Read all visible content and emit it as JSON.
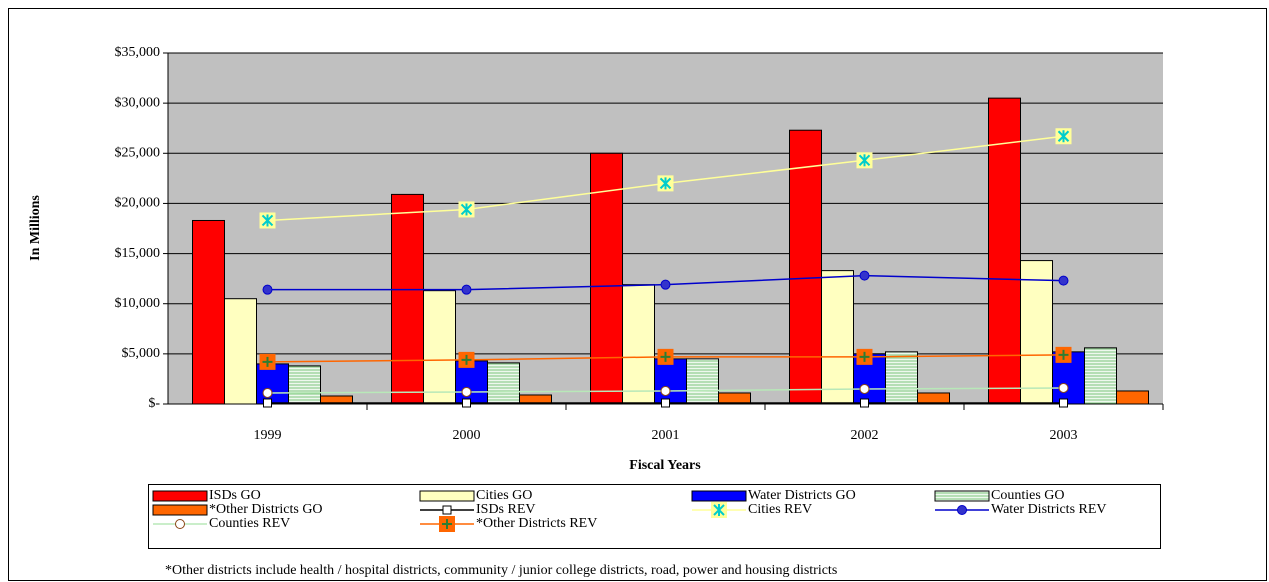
{
  "chart_data": {
    "type": "bar",
    "y_label": "In Millions",
    "x_label": "Fiscal Years",
    "footnote": "*Other districts include health / hospital districts, community / junior college districts, road, power and housing districts",
    "categories": [
      "1999",
      "2000",
      "2001",
      "2002",
      "2003"
    ],
    "ylim": [
      0,
      35000
    ],
    "yticks": [
      {
        "value": 0,
        "label": "$-"
      },
      {
        "value": 5000,
        "label": "$5,000"
      },
      {
        "value": 10000,
        "label": "$10,000"
      },
      {
        "value": 15000,
        "label": "$15,000"
      },
      {
        "value": 20000,
        "label": "$20,000"
      },
      {
        "value": 25000,
        "label": "$25,000"
      },
      {
        "value": 30000,
        "label": "$30,000"
      },
      {
        "value": 35000,
        "label": "$35,000"
      }
    ],
    "grid": true,
    "series": [
      {
        "name": "ISDs GO",
        "type": "bar",
        "color": "#ff0000",
        "values": [
          18300,
          20900,
          25000,
          27300,
          30500
        ]
      },
      {
        "name": "Cities GO",
        "type": "bar",
        "color": "#ffffc0",
        "values": [
          10500,
          11300,
          11900,
          13300,
          14300
        ]
      },
      {
        "name": "Water Districts GO",
        "type": "bar",
        "color": "#0000ff",
        "values": [
          4000,
          4300,
          4500,
          5000,
          5200
        ]
      },
      {
        "name": "Counties GO",
        "type": "bar",
        "color": "#eef8ee",
        "hatch": "#7cc47c",
        "values": [
          3800,
          4100,
          4500,
          5200,
          5600
        ]
      },
      {
        "name": "*Other Districts GO",
        "type": "bar",
        "color": "#ff6600",
        "values": [
          800,
          900,
          1100,
          1100,
          1300
        ]
      },
      {
        "name": "ISDs REV",
        "type": "line",
        "color": "#000000",
        "marker": "square",
        "marker_color": "#ffffff",
        "values": [
          100,
          100,
          100,
          100,
          100
        ]
      },
      {
        "name": "Cities REV",
        "type": "line",
        "color": "#ffff99",
        "marker": "asterisk",
        "marker_color": "#00cccc",
        "values": [
          18300,
          19400,
          22000,
          24300,
          26700
        ]
      },
      {
        "name": "Water Districts REV",
        "type": "line",
        "color": "#0000cc",
        "marker": "circle",
        "marker_color": "#3333cc",
        "values": [
          11400,
          11400,
          11900,
          12800,
          12300
        ]
      },
      {
        "name": "Counties REV",
        "type": "line",
        "color": "#b8e8b8",
        "marker": "circle",
        "marker_color": "#ffffff",
        "values": [
          1100,
          1200,
          1300,
          1500,
          1600
        ]
      },
      {
        "name": "*Other Districts REV",
        "type": "line",
        "color": "#ff6600",
        "marker": "plus",
        "marker_color": "#ff6600",
        "values": [
          4200,
          4400,
          4700,
          4700,
          4900
        ]
      }
    ]
  }
}
